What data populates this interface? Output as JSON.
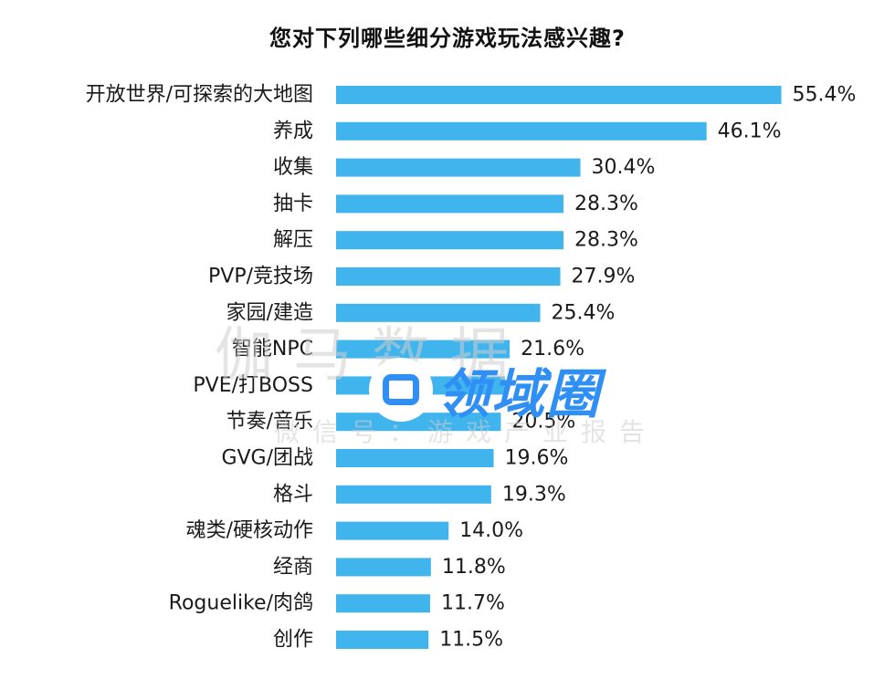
{
  "chart_data": {
    "type": "bar",
    "orientation": "horizontal",
    "title": "您对下列哪些细分游戏玩法感兴趣?",
    "categories": [
      "开放世界/可探索的大地图",
      "养成",
      "收集",
      "抽卡",
      "解压",
      "PVP/竞技场",
      "家园/建造",
      "智能NPC",
      "PVE/打BOSS",
      "节奏/音乐",
      "GVG/团战",
      "格斗",
      "魂类/硬核动作",
      "经商",
      "Roguelike/肉鸽",
      "创作"
    ],
    "values": [
      55.4,
      46.1,
      30.4,
      28.3,
      28.3,
      27.9,
      25.4,
      21.6,
      21.0,
      20.5,
      19.6,
      19.3,
      14.0,
      11.8,
      11.7,
      11.5
    ],
    "value_labels": [
      "55.4%",
      "46.1%",
      "30.4%",
      "28.3%",
      "28.3%",
      "27.9%",
      "25.4%",
      "21.6%",
      "",
      "20.5%",
      "19.6%",
      "19.3%",
      "14.0%",
      "11.8%",
      "11.7%",
      "11.5%"
    ],
    "unit": "%",
    "bar_color": "#40b4ec",
    "grid": false,
    "legend": "none"
  },
  "watermark": {
    "big": "伽马数据",
    "small": "微信号：游戏产业报告",
    "logo_text": "领域圈",
    "logo_color": "#2f8ff5",
    "logo_icon": "chat-bubble-icon"
  }
}
